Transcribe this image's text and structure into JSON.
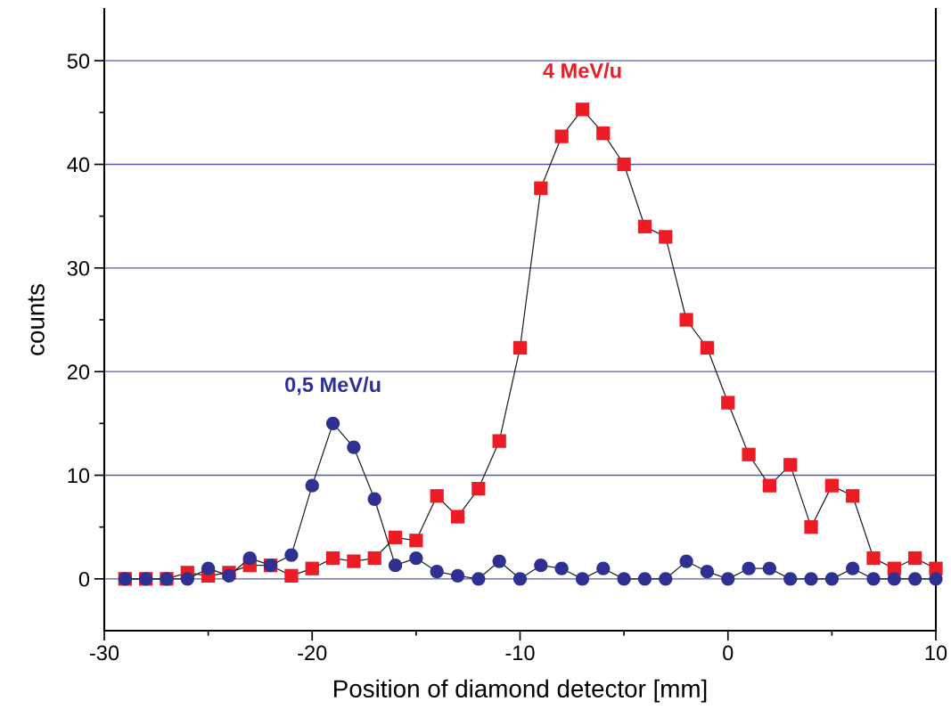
{
  "chart_data": {
    "type": "line",
    "xlabel": "Position of diamond detector [mm]",
    "ylabel": "counts",
    "x": [
      -29,
      -28,
      -27,
      -26,
      -25,
      -24,
      -23,
      -22,
      -21,
      -20,
      -19,
      -18,
      -17,
      -16,
      -15,
      -14,
      -13,
      -12,
      -11,
      -10,
      -9,
      -8,
      -7,
      -6,
      -5,
      -4,
      -3,
      -2,
      -1,
      0,
      1,
      2,
      3,
      4,
      5,
      6,
      7,
      8,
      9,
      10
    ],
    "series": [
      {
        "name": "4 MeV/u",
        "color": "#ed1c24",
        "marker": "square",
        "values": [
          0,
          0,
          0,
          0.6,
          0.3,
          0.6,
          1.3,
          1.3,
          0.3,
          1,
          2,
          1.7,
          2,
          4,
          3.7,
          8,
          6,
          8.7,
          13.3,
          22.3,
          37.7,
          42.7,
          45.3,
          43,
          40,
          34,
          33,
          25,
          22.3,
          17,
          12,
          9,
          11,
          5,
          9,
          8,
          2,
          1,
          2,
          1
        ]
      },
      {
        "name": "0,5 MeV/u",
        "color": "#2e3192",
        "marker": "circle",
        "values": [
          0,
          0,
          0,
          0,
          1,
          0.3,
          2,
          1.3,
          2.3,
          9,
          15,
          12.7,
          7.7,
          1.3,
          2,
          0.7,
          0.3,
          0,
          1.7,
          0,
          1.3,
          1,
          0,
          1,
          0,
          0,
          0,
          1.7,
          0.7,
          0,
          1,
          1,
          0,
          0,
          0,
          1,
          0,
          0,
          0,
          0
        ]
      }
    ],
    "xlim": [
      -30,
      10
    ],
    "xticks": [
      -30,
      {
        "value": -25,
        "label": null
      },
      -20,
      {
        "value": -15,
        "label": null
      },
      -10,
      {
        "value": -5,
        "label": null
      },
      0,
      {
        "value": 5,
        "label": null
      },
      10
    ],
    "ylim": [
      -5,
      55
    ],
    "yticks": [
      0,
      {
        "value": 5,
        "label": null
      },
      10,
      {
        "value": 15,
        "label": null
      },
      20,
      {
        "value": 25,
        "label": null
      },
      30,
      {
        "value": 35,
        "label": null
      },
      40,
      {
        "value": 45,
        "label": null
      },
      50
    ],
    "grid": "y",
    "line_style": "solid",
    "legend": false
  }
}
